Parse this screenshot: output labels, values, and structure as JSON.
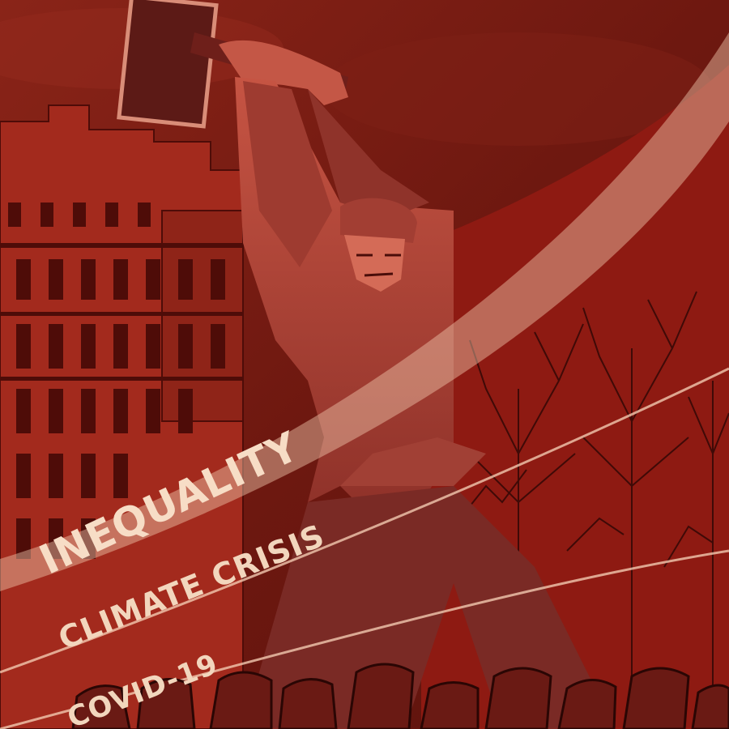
{
  "slogans": [
    "INEQUALITY",
    "CLIMATE CRISIS",
    "COVID-19"
  ],
  "colors": {
    "sky": "#7a1c14",
    "deep": "#4a0d09",
    "figure": "#b8463a",
    "swoosh": "#f2c9b0",
    "text": "#f7ddc6"
  }
}
